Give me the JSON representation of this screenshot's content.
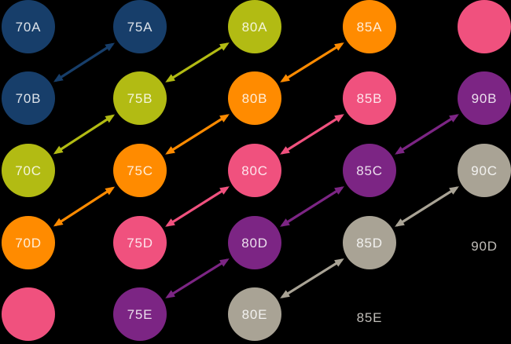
{
  "background": "#000000",
  "colors": {
    "navy": "#173e6a",
    "olive": "#b2bb13",
    "orange": "#ff8b00",
    "pink": "#f0517e",
    "purple": "#7c2584",
    "gray": "#a9a395",
    "textgray": "#c0bdb8"
  },
  "nodes": [
    {
      "label": "70A",
      "col": 0,
      "row": 0,
      "color": "navy",
      "shape": "circle"
    },
    {
      "label": "75A",
      "col": 1,
      "row": 0,
      "color": "navy",
      "shape": "circle"
    },
    {
      "label": "80A",
      "col": 2,
      "row": 0,
      "color": "olive",
      "shape": "circle"
    },
    {
      "label": "85A",
      "col": 3,
      "row": 0,
      "color": "orange",
      "shape": "circle"
    },
    {
      "label": "",
      "col": 4,
      "row": 0,
      "color": "pink",
      "shape": "circle"
    },
    {
      "label": "70B",
      "col": 0,
      "row": 1,
      "color": "navy",
      "shape": "circle"
    },
    {
      "label": "75B",
      "col": 1,
      "row": 1,
      "color": "olive",
      "shape": "circle"
    },
    {
      "label": "80B",
      "col": 2,
      "row": 1,
      "color": "orange",
      "shape": "circle"
    },
    {
      "label": "85B",
      "col": 3,
      "row": 1,
      "color": "pink",
      "shape": "circle"
    },
    {
      "label": "90B",
      "col": 4,
      "row": 1,
      "color": "purple",
      "shape": "circle"
    },
    {
      "label": "70C",
      "col": 0,
      "row": 2,
      "color": "olive",
      "shape": "circle"
    },
    {
      "label": "75C",
      "col": 1,
      "row": 2,
      "color": "orange",
      "shape": "circle"
    },
    {
      "label": "80C",
      "col": 2,
      "row": 2,
      "color": "pink",
      "shape": "circle"
    },
    {
      "label": "85C",
      "col": 3,
      "row": 2,
      "color": "purple",
      "shape": "circle"
    },
    {
      "label": "90C",
      "col": 4,
      "row": 2,
      "color": "gray",
      "shape": "circle"
    },
    {
      "label": "70D",
      "col": 0,
      "row": 3,
      "color": "orange",
      "shape": "circle"
    },
    {
      "label": "75D",
      "col": 1,
      "row": 3,
      "color": "pink",
      "shape": "circle"
    },
    {
      "label": "80D",
      "col": 2,
      "row": 3,
      "color": "purple",
      "shape": "circle"
    },
    {
      "label": "85D",
      "col": 3,
      "row": 3,
      "color": "gray",
      "shape": "circle"
    },
    {
      "label": "90D",
      "col": 4,
      "row": 3,
      "color": "textgray",
      "shape": "text"
    },
    {
      "label": "",
      "col": 0,
      "row": 4,
      "color": "pink",
      "shape": "circle"
    },
    {
      "label": "75E",
      "col": 1,
      "row": 4,
      "color": "purple",
      "shape": "circle"
    },
    {
      "label": "80E",
      "col": 2,
      "row": 4,
      "color": "gray",
      "shape": "circle"
    },
    {
      "label": "85E",
      "col": 3,
      "row": 4,
      "color": "textgray",
      "shape": "text"
    }
  ],
  "arrows": [
    {
      "from": "70B",
      "to": "75A",
      "color": "navy",
      "bidirectional": true
    },
    {
      "from": "70C",
      "to": "75B",
      "color": "olive",
      "bidirectional": true
    },
    {
      "from": "75B",
      "to": "80A",
      "color": "olive",
      "bidirectional": true
    },
    {
      "from": "70D",
      "to": "75C",
      "color": "orange",
      "bidirectional": true
    },
    {
      "from": "75C",
      "to": "80B",
      "color": "orange",
      "bidirectional": true
    },
    {
      "from": "80B",
      "to": "85A",
      "color": "orange",
      "bidirectional": true
    },
    {
      "from": "75D",
      "to": "80C",
      "color": "pink",
      "bidirectional": true
    },
    {
      "from": "80C",
      "to": "85B",
      "color": "pink",
      "bidirectional": true
    },
    {
      "from": "75E",
      "to": "80D",
      "color": "purple",
      "bidirectional": true
    },
    {
      "from": "80D",
      "to": "85C",
      "color": "purple",
      "bidirectional": true
    },
    {
      "from": "85C",
      "to": "90B",
      "color": "purple",
      "bidirectional": true
    },
    {
      "from": "80E",
      "to": "85D",
      "color": "gray",
      "bidirectional": true
    },
    {
      "from": "85D",
      "to": "90C",
      "color": "gray",
      "bidirectional": true
    }
  ]
}
